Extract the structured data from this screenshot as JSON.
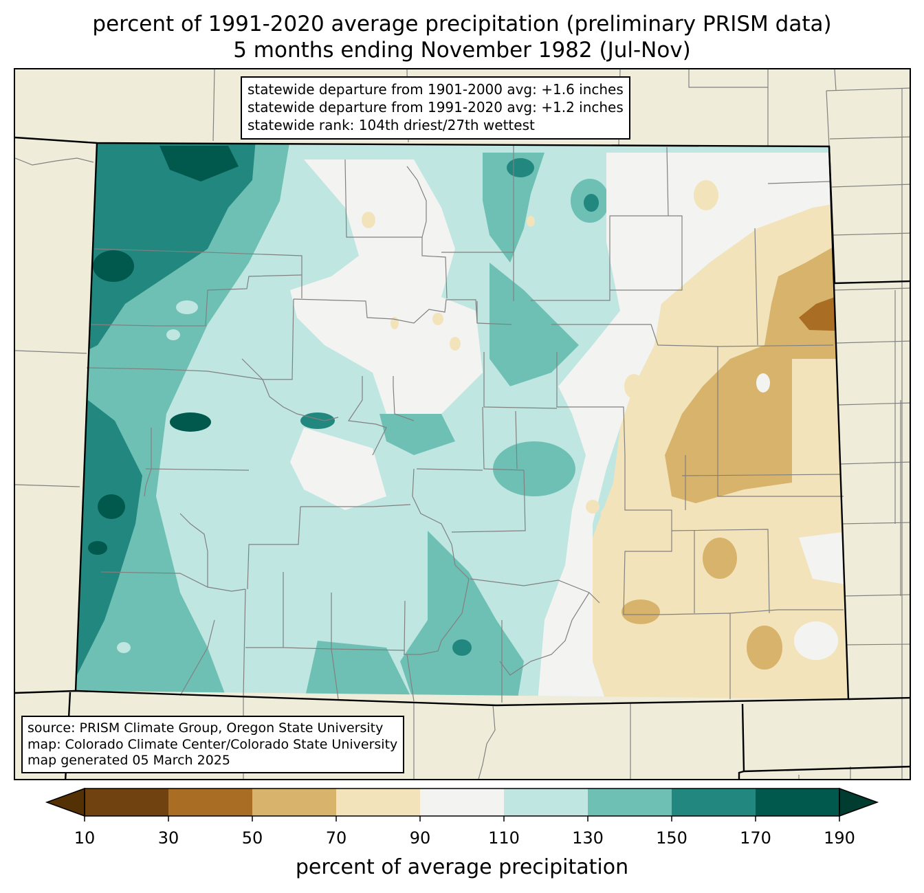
{
  "title": {
    "line1": "percent of 1991-2020 average precipitation (preliminary PRISM data)",
    "line2": "5 months ending November 1982 (Jul-Nov)"
  },
  "stats": {
    "line1": "statewide departure from 1901-2000 avg: +1.6 inches",
    "line2": "statewide departure from 1991-2020 avg: +1.2 inches",
    "line3": "statewide rank: 104th driest/27th wettest"
  },
  "credits": {
    "source": "source: PRISM Climate Group, Oregon State University",
    "map": "map: Colorado Climate Center/Colorado State University",
    "generated": "map generated 05 March 2025"
  },
  "colorbar": {
    "label": "percent of average precipitation",
    "ticks": [
      "10",
      "30",
      "50",
      "70",
      "90",
      "110",
      "130",
      "150",
      "170",
      "190"
    ],
    "bins": [
      {
        "range": "10-30",
        "color": "#6f420f"
      },
      {
        "range": "30-50",
        "color": "#a96e24"
      },
      {
        "range": "50-70",
        "color": "#d8b36b"
      },
      {
        "range": "70-90",
        "color": "#f3e3ba"
      },
      {
        "range": "90-110",
        "color": "#f3f4f2"
      },
      {
        "range": "110-130",
        "color": "#bfe6e1"
      },
      {
        "range": "130-150",
        "color": "#6fc0b4"
      },
      {
        "range": "150-170",
        "color": "#22877f"
      },
      {
        "range": "170-190",
        "color": "#01584d"
      }
    ],
    "under_color": "#543005",
    "over_color": "#003c30"
  },
  "map_colors": {
    "land": "#efedda",
    "border": "#000000",
    "county": "#808080"
  }
}
